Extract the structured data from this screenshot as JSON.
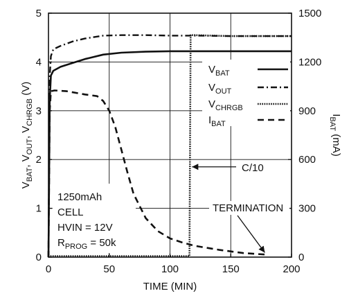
{
  "chart_data": {
    "type": "line",
    "title": "",
    "xlabel": "TIME (MIN)",
    "ylabel_left": [
      "V",
      "BAT",
      ", V",
      "OUT",
      ", V",
      "CHRGB",
      " (V)"
    ],
    "ylabel_right": [
      "I",
      "BAT",
      " (mA)"
    ],
    "xlim": [
      0,
      200
    ],
    "ylim_left": [
      0,
      5
    ],
    "ylim_right": [
      0,
      1500
    ],
    "x_ticks": [
      0,
      50,
      100,
      150,
      200
    ],
    "y_left_ticks": [
      0,
      1,
      2,
      3,
      4,
      5
    ],
    "y_right_ticks": [
      0,
      300,
      600,
      900,
      1200,
      1500
    ],
    "grid": true,
    "legend_position": "top-right",
    "series": [
      {
        "name": [
          "V",
          "BAT"
        ],
        "axis": "left",
        "style": "solid",
        "x": [
          0,
          1,
          2,
          4,
          10,
          20,
          30,
          45,
          60,
          80,
          100,
          120,
          150,
          200
        ],
        "y": [
          0,
          3.2,
          3.72,
          3.82,
          3.9,
          3.98,
          4.06,
          4.15,
          4.19,
          4.21,
          4.22,
          4.22,
          4.22,
          4.22
        ]
      },
      {
        "name": [
          "V",
          "OUT"
        ],
        "axis": "left",
        "style": "dashdot",
        "x": [
          0,
          1,
          2,
          4,
          10,
          20,
          30,
          45,
          60,
          80,
          100,
          120,
          150,
          200
        ],
        "y": [
          0,
          3.7,
          4.12,
          4.26,
          4.33,
          4.42,
          4.48,
          4.54,
          4.55,
          4.55,
          4.54,
          4.54,
          4.53,
          4.53
        ]
      },
      {
        "name": [
          "V",
          "CHRGB"
        ],
        "axis": "left",
        "style": "dotted",
        "x": [
          0,
          1,
          2,
          116,
          117,
          120,
          150,
          200
        ],
        "y": [
          0,
          0.02,
          0.02,
          0.02,
          4.55,
          4.55,
          4.53,
          4.53
        ]
      },
      {
        "name": [
          "I",
          "BAT"
        ],
        "axis": "right",
        "style": "dashed",
        "x": [
          0,
          1,
          2,
          5,
          15,
          30,
          40,
          45,
          50,
          55,
          60,
          65,
          70,
          80,
          90,
          100,
          110,
          120,
          140,
          160,
          180
        ],
        "y": [
          0,
          900,
          1020,
          1025,
          1020,
          1000,
          990,
          960,
          900,
          800,
          660,
          520,
          390,
          240,
          160,
          115,
          90,
          70,
          45,
          25,
          15
        ]
      }
    ],
    "annotations": {
      "cell_info": [
        {
          "text": [
            "1250mAh"
          ]
        },
        {
          "text": [
            "CELL"
          ]
        },
        {
          "text": [
            "HVIN = 12V"
          ]
        },
        {
          "text": [
            "R",
            "PROG",
            " = 50k"
          ]
        }
      ],
      "c10_label": "C/10",
      "termination_label": "TERMINATION"
    },
    "colors": {
      "ink": "#111111",
      "grid": "#111111",
      "background": "#ffffff"
    }
  }
}
